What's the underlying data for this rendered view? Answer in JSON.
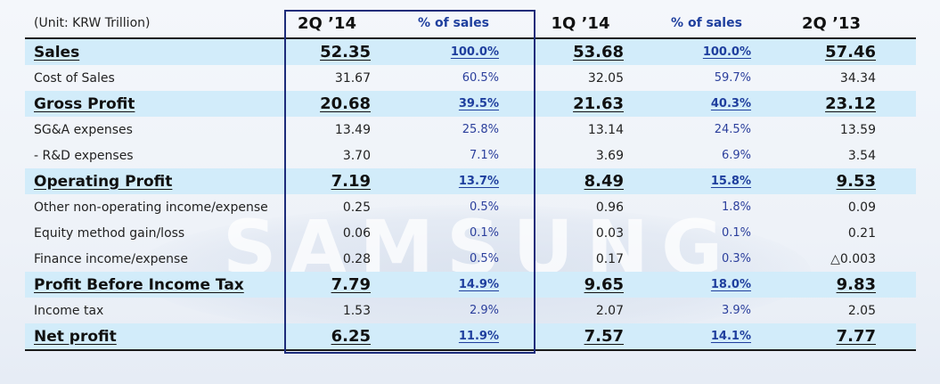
{
  "watermark": {
    "text": "SAMSUNG"
  },
  "table": {
    "unit_label": "(Unit: KRW Trillion)",
    "columns": [
      "2Q ’14",
      "% of sales",
      "1Q ’14",
      "% of sales",
      "2Q ’13"
    ],
    "rows": [
      {
        "label": "Sales",
        "highlight": true,
        "values": [
          "52.35",
          "100.0%",
          "53.68",
          "100.0%",
          "57.46"
        ]
      },
      {
        "label": "Cost of Sales",
        "highlight": false,
        "values": [
          "31.67",
          "60.5%",
          "32.05",
          "59.7%",
          "34.34"
        ]
      },
      {
        "label": "Gross Profit",
        "highlight": true,
        "values": [
          "20.68",
          "39.5%",
          "21.63",
          "40.3%",
          "23.12"
        ]
      },
      {
        "label": "SG&A expenses",
        "highlight": false,
        "values": [
          "13.49",
          "25.8%",
          "13.14",
          "24.5%",
          "13.59"
        ]
      },
      {
        "label": "- R&D expenses",
        "highlight": false,
        "values": [
          "3.70",
          "7.1%",
          "3.69",
          "6.9%",
          "3.54"
        ]
      },
      {
        "label": "Operating Profit",
        "highlight": true,
        "values": [
          "7.19",
          "13.7%",
          "8.49",
          "15.8%",
          "9.53"
        ]
      },
      {
        "label": "Other non-operating income/expense",
        "highlight": false,
        "values": [
          "0.25",
          "0.5%",
          "0.96",
          "1.8%",
          "0.09"
        ]
      },
      {
        "label": "Equity method gain/loss",
        "highlight": false,
        "values": [
          "0.06",
          "0.1%",
          "0.03",
          "0.1%",
          "0.21"
        ]
      },
      {
        "label": "Finance income/expense",
        "highlight": false,
        "values": [
          "0.28",
          "0.5%",
          "0.17",
          "0.3%",
          "△0.003"
        ]
      },
      {
        "label": "Profit Before Income Tax",
        "highlight": true,
        "values": [
          "7.79",
          "14.9%",
          "9.65",
          "18.0%",
          "9.83"
        ]
      },
      {
        "label": "Income tax",
        "highlight": false,
        "values": [
          "1.53",
          "2.9%",
          "2.07",
          "3.9%",
          "2.05"
        ]
      },
      {
        "label": "Net profit",
        "highlight": true,
        "values": [
          "6.25",
          "11.9%",
          "7.57",
          "14.1%",
          "7.77"
        ]
      }
    ]
  },
  "colors": {
    "highlight_row": "#d2ecfa",
    "frame": "#1d2c7a",
    "percent_text": "#1f3f9e"
  }
}
